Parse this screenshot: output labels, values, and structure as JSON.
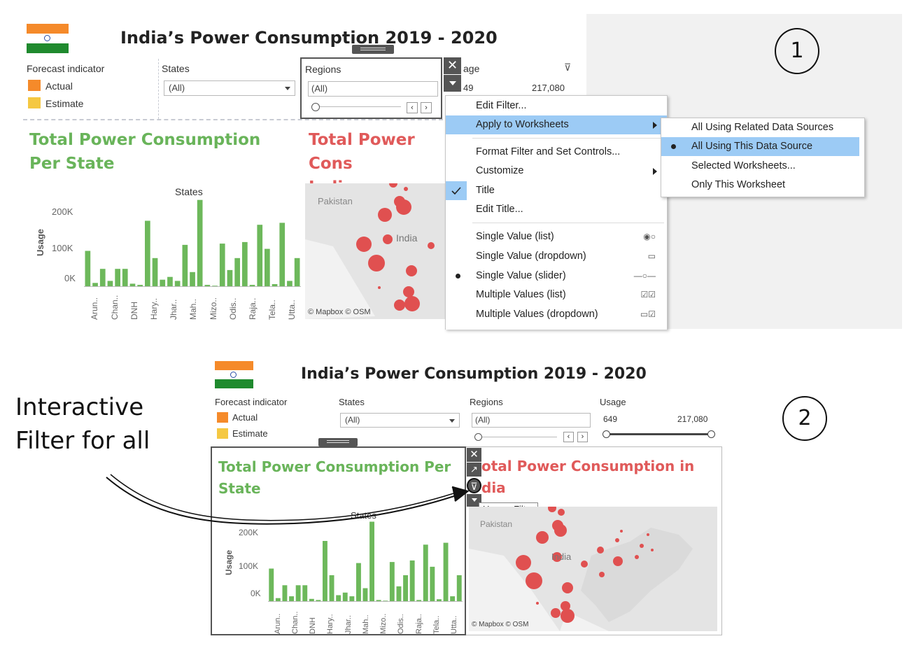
{
  "panel1": {
    "title": "India’s Power Consumption 2019 - 2020",
    "forecast": {
      "label": "Forecast indicator",
      "items": [
        {
          "label": "Actual",
          "color": "#f58a2a"
        },
        {
          "label": "Estimate",
          "color": "#f5c842"
        }
      ]
    },
    "states_filter": {
      "label": "States",
      "value": "(All)"
    },
    "regions_filter": {
      "label": "Regions",
      "value": "(All)"
    },
    "usage_filter": {
      "label": "age",
      "min": "49",
      "max": "217,080"
    },
    "sheet_left_title": "Total Power Consumption Per State",
    "sheet_right_title": "Total Power Cons\nIndia",
    "sheet_right_title_line1": "Total Power Cons",
    "sheet_right_title_line2": "India",
    "map_labels": {
      "pakistan": "Pakistan",
      "india": "India",
      "credit": "© Mapbox © OSM"
    },
    "menu": {
      "items": [
        {
          "label": "Edit Filter..."
        },
        {
          "label": "Apply to Worksheets",
          "submenu": true,
          "highlight": true
        },
        {
          "label": "Format Filter and Set Controls..."
        },
        {
          "label": "Customize",
          "submenu": true
        },
        {
          "label": "Title",
          "checked": true
        },
        {
          "label": "Edit Title..."
        },
        {
          "label": "Single Value (list)",
          "icon": "radio-pair-icon"
        },
        {
          "label": "Single Value (dropdown)",
          "icon": "dropdown-icon"
        },
        {
          "label": "Single Value (slider)",
          "icon": "slider-icon",
          "selected": true
        },
        {
          "label": "Multiple Values (list)",
          "icon": "checkbox-pair-icon"
        },
        {
          "label": "Multiple Values (dropdown)",
          "icon": "dropdown-check-icon"
        }
      ],
      "submenu": [
        {
          "label": "All Using Related Data Sources"
        },
        {
          "label": "All Using This Data Source",
          "selected": true
        },
        {
          "label": "Selected Worksheets..."
        },
        {
          "label": "Only This Worksheet"
        }
      ]
    },
    "annotation_number": "1"
  },
  "panel2": {
    "title": "India’s Power Consumption 2019 - 2020",
    "forecast": {
      "label": "Forecast indicator",
      "items": [
        {
          "label": "Actual",
          "color": "#f58a2a"
        },
        {
          "label": "Estimate",
          "color": "#f5c842"
        }
      ]
    },
    "states_filter": {
      "label": "States",
      "value": "(All)"
    },
    "regions_filter": {
      "label": "Regions",
      "value": "(All)"
    },
    "usage_filter": {
      "label": "Usage",
      "min": "649",
      "max": "217,080"
    },
    "sheet_left_title_line1": "Total Power Consumption Per",
    "sheet_left_title_line2": "State",
    "sheet_right_title_line1": "otal Power Consumption in",
    "sheet_right_title_line2": "dia",
    "tooltip": "Use as Filter",
    "map_labels": {
      "pakistan": "Pakistan",
      "india": "India",
      "credit": "© Mapbox © OSM"
    },
    "annotation_number": "2",
    "annotation_text_line1": "Interactive",
    "annotation_text_line2": "Filter for all"
  },
  "chart_data": {
    "type": "bar",
    "title": "States",
    "xlabel": "",
    "ylabel": "Usage",
    "ylim": [
      0,
      220000
    ],
    "yticks": [
      "200K",
      "100K",
      "0K"
    ],
    "xtick_labels": [
      "Arun..",
      "Chan..",
      "DNH",
      "Hary..",
      "Jhar..",
      "Mah..",
      "Mizo..",
      "Odis..",
      "Raja..",
      "Tela..",
      "Utta.."
    ],
    "values": [
      90000,
      10000,
      45000,
      15000,
      45000,
      45000,
      8000,
      5000,
      165000,
      72000,
      18000,
      25000,
      15000,
      105000,
      37000,
      217080,
      5000,
      3000,
      108000,
      42000,
      72000,
      112000,
      5000,
      155000,
      95000,
      7000,
      160000,
      15000,
      72000
    ],
    "color": "#6db85b"
  }
}
